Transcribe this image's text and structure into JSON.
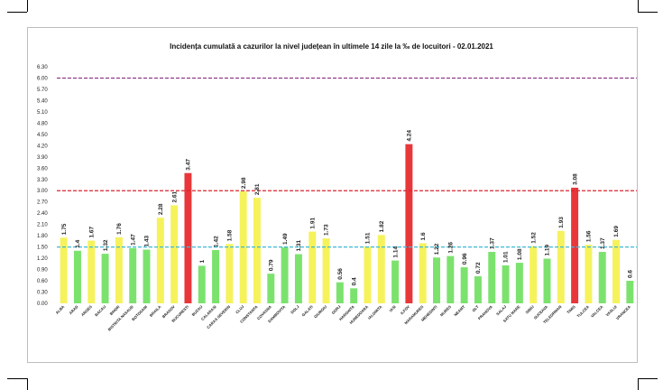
{
  "chart_data": {
    "type": "bar",
    "title": "Incidența cumulată a cazurilor la nivel județean în ultimele 14 zile la ‰ de locuitori - 02.01.2021",
    "xlabel": "",
    "ylabel": "",
    "ylim": [
      0,
      6.3
    ],
    "yticks": [
      "0.00",
      "0.30",
      "0.60",
      "0.90",
      "1.20",
      "1.50",
      "1.80",
      "2.10",
      "2.40",
      "2.70",
      "3.00",
      "3.30",
      "3.60",
      "3.90",
      "4.20",
      "4.50",
      "4.80",
      "5.10",
      "5.40",
      "5.70",
      "6.00",
      "6.30"
    ],
    "grid": false,
    "legend": "none",
    "categories": [
      "ALBA",
      "ARAD",
      "ARGES",
      "BACAU",
      "BIHOR",
      "BISTRITA NASAUD",
      "BOTOSANI",
      "BRAILA",
      "BRASOV",
      "BUCURESTI",
      "BUZAU",
      "CALARASI",
      "CARAS SEVERIN",
      "CLUJ",
      "CONSTANTA",
      "COVASNA",
      "DAMBOVITA",
      "DOLJ",
      "GALATI",
      "GIURGIU",
      "GORJ",
      "HARGHITA",
      "HUNEDOARA",
      "IALOMITA",
      "IASI",
      "ILFOV",
      "MARAMURES",
      "MEHEDINTI",
      "MURES",
      "NEAMT",
      "OLT",
      "PRAHOVA",
      "SALAJ",
      "SATU MARE",
      "SIBIU",
      "SUCEAVA",
      "TELEORMAN",
      "TIMIS",
      "TULCEA",
      "VALCEA",
      "VASLUI",
      "VRANCEA"
    ],
    "values": [
      1.75,
      1.4,
      1.67,
      1.32,
      1.76,
      1.47,
      1.43,
      2.28,
      2.61,
      3.47,
      1,
      1.42,
      1.58,
      2.98,
      2.81,
      0.79,
      1.49,
      1.31,
      1.91,
      1.73,
      0.56,
      0.4,
      1.51,
      1.82,
      1.14,
      4.24,
      1.6,
      1.22,
      1.26,
      0.96,
      0.72,
      1.37,
      1.01,
      1.08,
      1.52,
      1.19,
      1.93,
      3.08,
      1.56,
      1.37,
      1.69,
      0.6
    ],
    "value_labels": [
      "1.75",
      "1.4",
      "1.67",
      "1.32",
      "1.76",
      "1.47",
      "1.43",
      "2.28",
      "2.61",
      "3.47",
      "1",
      "1.42",
      "1.58",
      "2.98",
      "2.81",
      "0.79",
      "1.49",
      "1.31",
      "1.91",
      "1.73",
      "0.56",
      "0.4",
      "1.51",
      "1.82",
      "1.14",
      "4.24",
      "1.6",
      "1.22",
      "1.26",
      "0.96",
      "0.72",
      "1.37",
      "1.01",
      "1.08",
      "1.52",
      "1.19",
      "1.93",
      "3.08",
      "1.56",
      "1.37",
      "1.69",
      "0.6"
    ],
    "thresholds": [
      {
        "value": 1.5,
        "color": "#3fb8d6",
        "style": "dashed"
      },
      {
        "value": 3.0,
        "color": "#d9262c",
        "style": "dashed"
      },
      {
        "value": 6.0,
        "color": "#8e3a8a",
        "style": "dashed"
      }
    ],
    "colors": {
      "low": "#7ce26e",
      "mid": "#f6f25c",
      "high": "#e8373a"
    }
  }
}
